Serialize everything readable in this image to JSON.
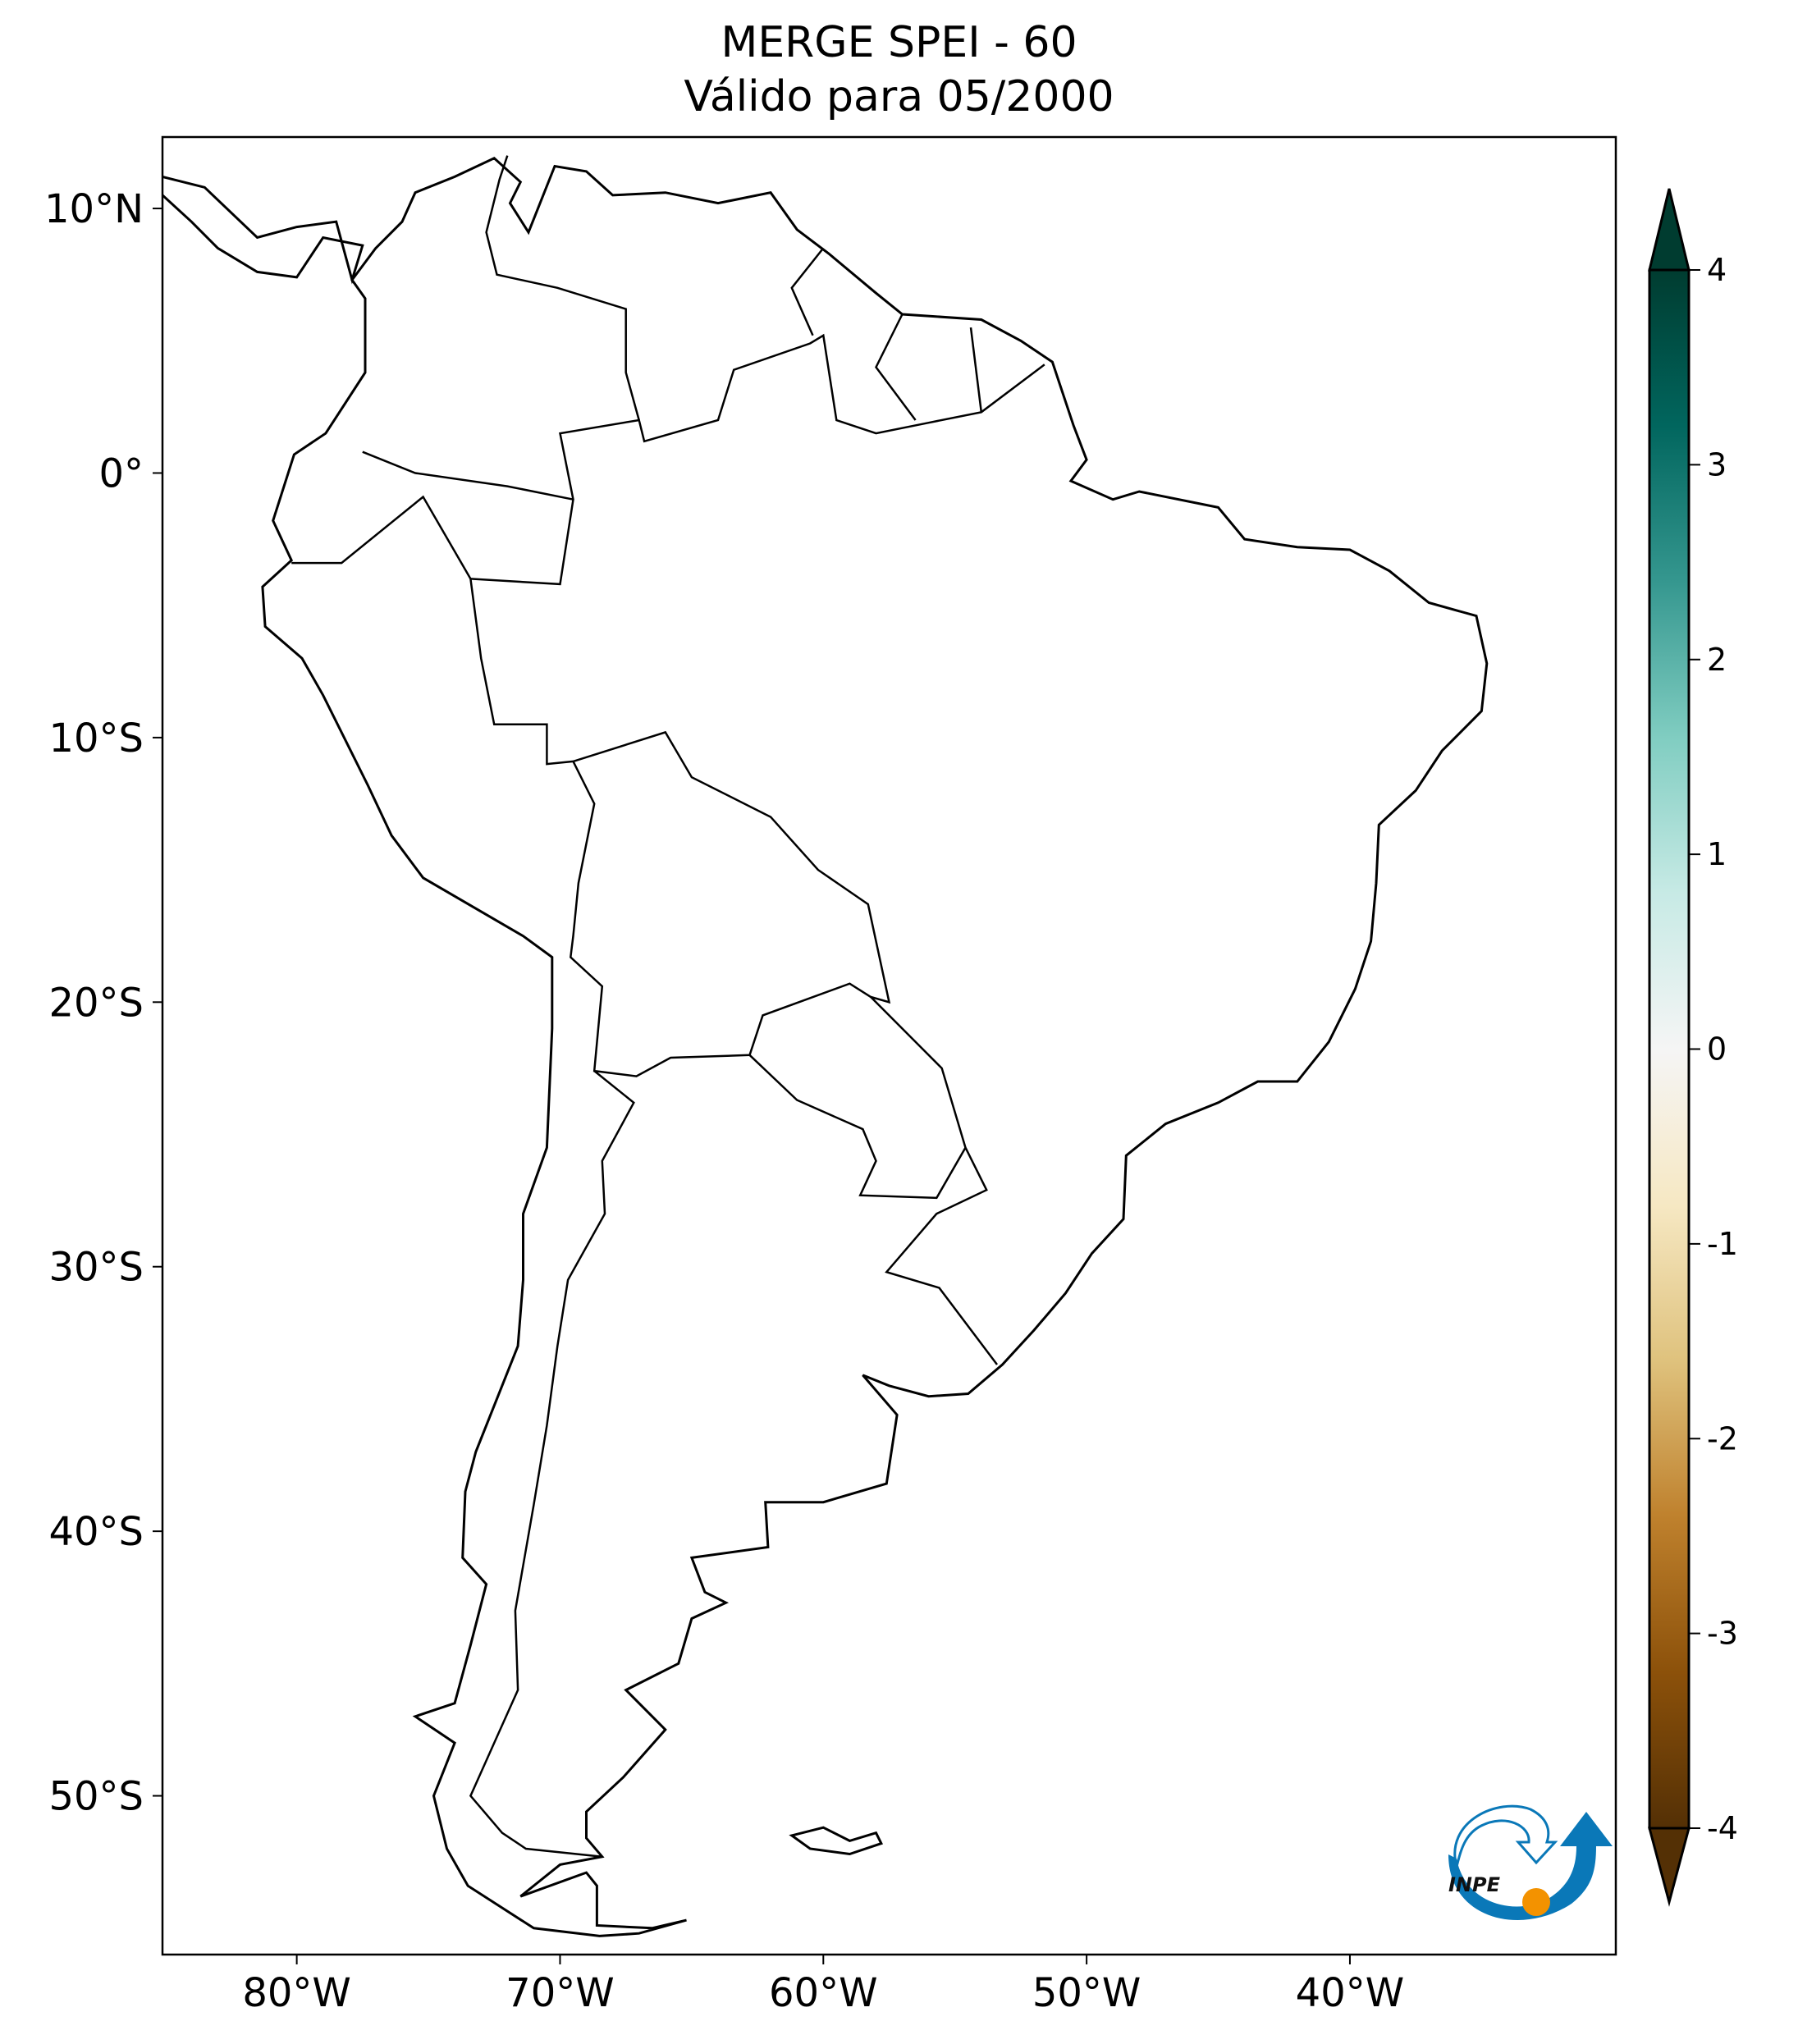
{
  "title": {
    "line1": "MERGE   SPEI - 60",
    "line2": "Válido para 05/2000"
  },
  "map": {
    "extent_lon": [
      -85.1,
      -29.9
    ],
    "extent_lat": [
      -56,
      12.7
    ],
    "lon_ticks": [
      {
        "value": -80,
        "label": "80°W"
      },
      {
        "value": -70,
        "label": "70°W"
      },
      {
        "value": -60,
        "label": "60°W"
      },
      {
        "value": -50,
        "label": "50°W"
      },
      {
        "value": -40,
        "label": "40°W"
      }
    ],
    "lat_ticks": [
      {
        "value": 10,
        "label": "10°N"
      },
      {
        "value": 0,
        "label": "0°"
      },
      {
        "value": -10,
        "label": "10°S"
      },
      {
        "value": -20,
        "label": "20°S"
      },
      {
        "value": -30,
        "label": "30°S"
      },
      {
        "value": -40,
        "label": "40°S"
      },
      {
        "value": -50,
        "label": "50°S"
      }
    ],
    "land_fill": "#ffffff",
    "line_color": "#000000"
  },
  "colorbar": {
    "colormap": "BrBG",
    "range": [
      -4,
      4
    ],
    "extend": "both",
    "ticks": [
      {
        "value": 4,
        "label": "4"
      },
      {
        "value": 3,
        "label": "3"
      },
      {
        "value": 2,
        "label": "2"
      },
      {
        "value": 1,
        "label": "1"
      },
      {
        "value": 0,
        "label": "0"
      },
      {
        "value": -1,
        "label": "-1"
      },
      {
        "value": -2,
        "label": "-2"
      },
      {
        "value": -3,
        "label": "-3"
      },
      {
        "value": -4,
        "label": "-4"
      }
    ],
    "stops": [
      "#543005",
      "#8c510a",
      "#bf812d",
      "#dfc27d",
      "#f6e8c3",
      "#f5f5f5",
      "#c7eae5",
      "#80cdc1",
      "#35978f",
      "#01665e",
      "#003c30"
    ]
  },
  "logo": {
    "text": "INPE",
    "blue": "#0a78b8",
    "orange": "#f39200"
  }
}
